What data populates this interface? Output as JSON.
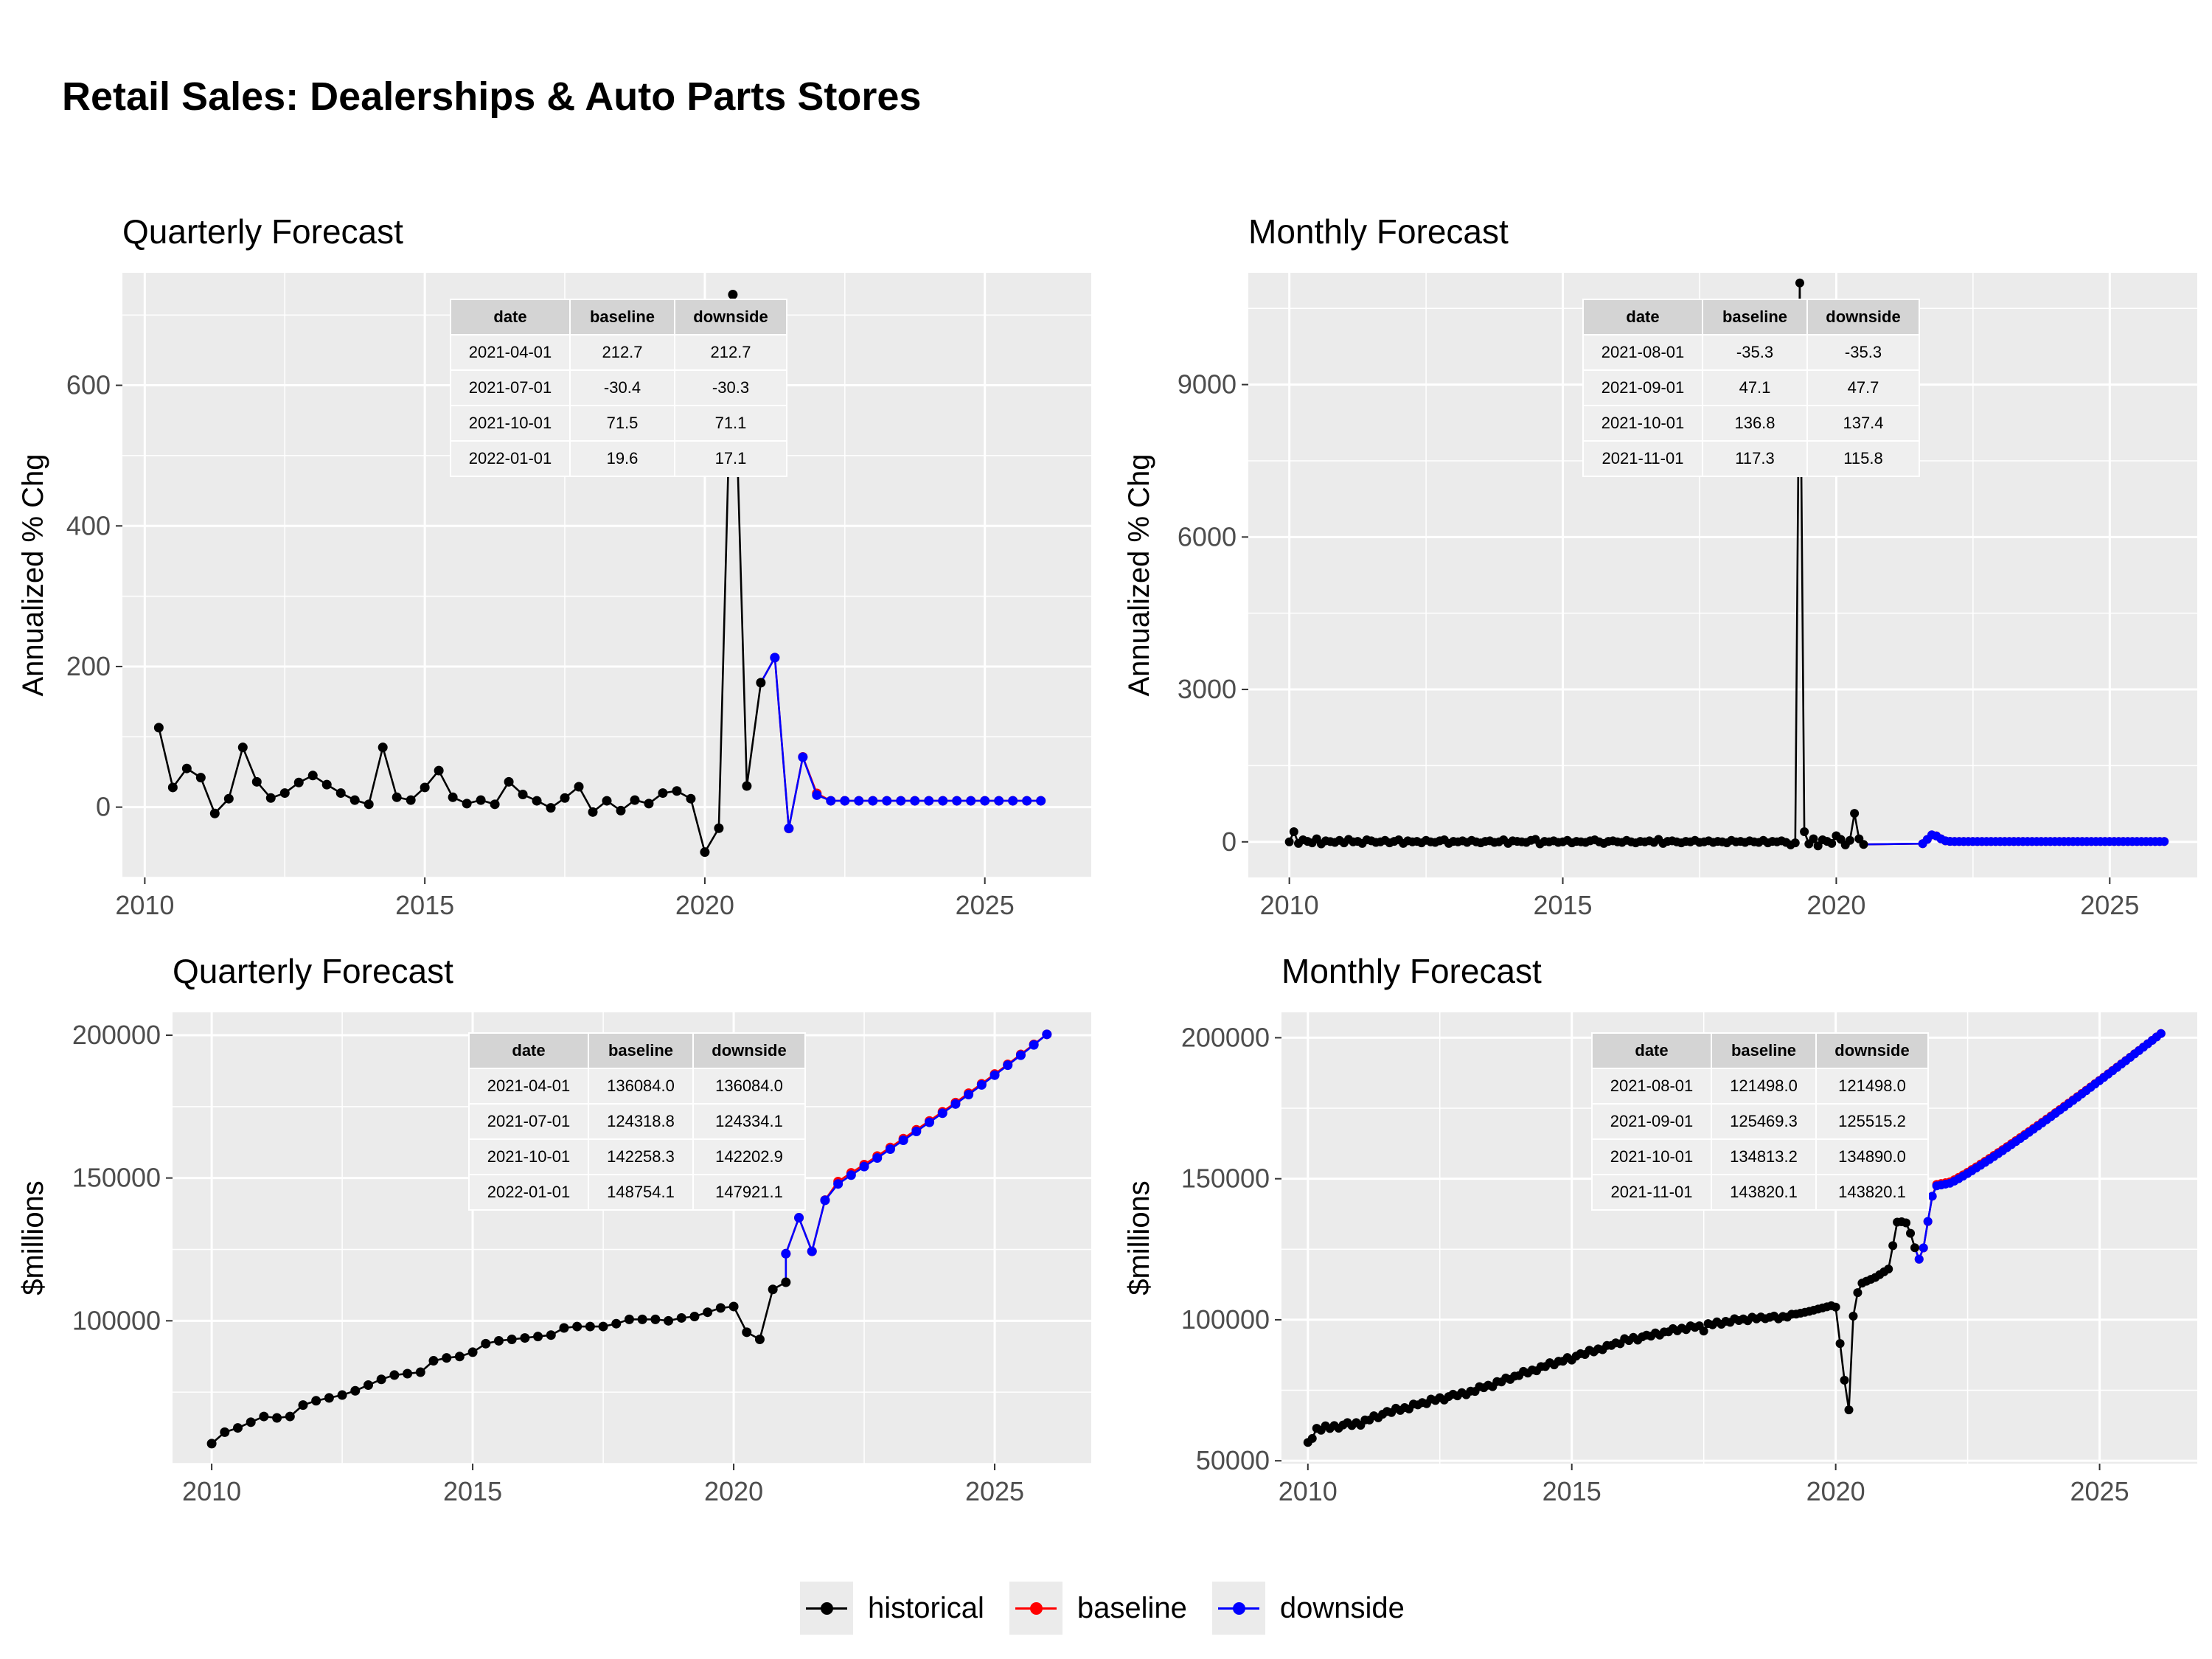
{
  "title": "Retail Sales: Dealerships & Auto Parts Stores",
  "colors": {
    "historical": "#000000",
    "baseline": "#ff0000",
    "downside": "#0000ff",
    "panel_bg": "#ebebeb",
    "grid": "#ffffff"
  },
  "legend": {
    "items": [
      {
        "key": "historical",
        "label": "historical"
      },
      {
        "key": "baseline",
        "label": "baseline"
      },
      {
        "key": "downside",
        "label": "downside"
      }
    ]
  },
  "chart_data": [
    {
      "id": "q_chg",
      "type": "line",
      "title": "Quarterly Forecast",
      "ylabel": "Annualized % Chg",
      "xlabel": "",
      "xlim": [
        2009.6,
        2026.9
      ],
      "ylim": [
        -100,
        760
      ],
      "xticks": [
        "2010",
        "2015",
        "2020",
        "2025"
      ],
      "yticks": [
        "0",
        "200",
        "400",
        "600"
      ],
      "historical": {
        "x": [
          2010.25,
          2010.5,
          2010.75,
          2011.0,
          2011.25,
          2011.5,
          2011.75,
          2012.0,
          2012.25,
          2012.5,
          2012.75,
          2013.0,
          2013.25,
          2013.5,
          2013.75,
          2014.0,
          2014.25,
          2014.5,
          2014.75,
          2015.0,
          2015.25,
          2015.5,
          2015.75,
          2016.0,
          2016.25,
          2016.5,
          2016.75,
          2017.0,
          2017.25,
          2017.5,
          2017.75,
          2018.0,
          2018.25,
          2018.5,
          2018.75,
          2019.0,
          2019.25,
          2019.5,
          2019.75,
          2020.0,
          2020.25,
          2020.5,
          2020.75,
          2021.0
        ],
        "y": [
          113,
          28,
          55,
          42,
          -9,
          12,
          85,
          36,
          13,
          20,
          35,
          45,
          32,
          20,
          10,
          4,
          85,
          14,
          10,
          28,
          52,
          14,
          5,
          10,
          4,
          36,
          18,
          9,
          -1,
          13,
          29,
          -7,
          9,
          -5,
          10,
          5,
          20,
          23,
          12,
          -64,
          -30,
          729,
          30,
          177
        ]
      },
      "baseline": {
        "x": [
          2021.25,
          2021.5,
          2021.75,
          2022.0,
          2022.25,
          2022.5,
          2022.75,
          2023.0,
          2023.25,
          2023.5,
          2023.75,
          2024.0,
          2024.25,
          2024.5,
          2024.75,
          2025.0,
          2025.25,
          2025.5,
          2025.75,
          2026.0
        ],
        "y": [
          212.7,
          -30.4,
          71.5,
          19.6,
          9,
          9,
          9,
          9,
          9,
          9,
          9,
          9,
          9,
          9,
          9,
          9,
          9,
          9,
          9,
          9
        ]
      },
      "downside": {
        "x": [
          2021.25,
          2021.5,
          2021.75,
          2022.0,
          2022.25,
          2022.5,
          2022.75,
          2023.0,
          2023.25,
          2023.5,
          2023.75,
          2024.0,
          2024.25,
          2024.5,
          2024.75,
          2025.0,
          2025.25,
          2025.5,
          2025.75,
          2026.0
        ],
        "y": [
          212.7,
          -30.3,
          71.1,
          17.1,
          9,
          9,
          9,
          9,
          9,
          9,
          9,
          9,
          9,
          9,
          9,
          9,
          9,
          9,
          9,
          9
        ]
      },
      "table": {
        "headers": [
          "date",
          "baseline",
          "downside"
        ],
        "rows": [
          [
            "2021-04-01",
            "212.7",
            "212.7"
          ],
          [
            "2021-07-01",
            "-30.4",
            "-30.3"
          ],
          [
            "2021-10-01",
            "71.5",
            "71.1"
          ],
          [
            "2022-01-01",
            "19.6",
            "17.1"
          ]
        ]
      }
    },
    {
      "id": "m_chg",
      "type": "line",
      "title": "Monthly Forecast",
      "ylabel": "Annualized % Chg",
      "xlabel": "",
      "xlim": [
        2009.25,
        2026.6
      ],
      "ylim": [
        -700,
        11200
      ],
      "xticks": [
        "2010",
        "2015",
        "2020",
        "2025"
      ],
      "yticks": [
        "0",
        "3000",
        "6000",
        "9000"
      ],
      "historical": {
        "x_start": 2010.0,
        "x_step": 0.08333,
        "y": [
          0,
          200,
          -30,
          40,
          10,
          -20,
          60,
          -40,
          20,
          5,
          -10,
          30,
          -20,
          50,
          0,
          10,
          -30,
          40,
          20,
          -10,
          0,
          30,
          -20,
          10,
          40,
          -30,
          20,
          0,
          10,
          -20,
          30,
          0,
          -10,
          20,
          40,
          -30,
          10,
          0,
          20,
          -10,
          30,
          0,
          -20,
          10,
          20,
          -10,
          0,
          40,
          -30,
          20,
          10,
          0,
          -10,
          30,
          50,
          -40,
          10,
          0,
          20,
          -10,
          0,
          30,
          -20,
          10,
          0,
          -10,
          20,
          40,
          0,
          -30,
          10,
          20,
          0,
          -10,
          30,
          0,
          -20,
          10,
          0,
          20,
          -10,
          50,
          -30,
          10,
          20,
          0,
          -20,
          10,
          0,
          30,
          -10,
          0,
          20,
          -10,
          10,
          0,
          -20,
          30,
          0,
          10,
          -10,
          20,
          0,
          -10,
          30,
          -20,
          10,
          0,
          20,
          -10,
          -60,
          -20,
          11000,
          200,
          -40,
          60,
          -80,
          40,
          10,
          -30,
          120,
          50,
          -60,
          30,
          560,
          60,
          -50
        ],
        "peak_note": "historical April-May 2020 spike near 11000"
      },
      "baseline": {
        "x_start": 2021.58,
        "x_step": 0.08333,
        "y": [
          -35.3,
          47.1,
          136.8,
          117.3,
          60,
          20,
          10,
          8,
          7,
          7,
          7,
          7,
          7,
          7,
          7,
          7,
          7,
          7,
          7,
          7,
          7,
          7,
          7,
          7,
          7,
          7,
          7,
          7,
          7,
          7,
          7,
          7,
          7,
          7,
          7,
          7,
          7,
          7,
          7,
          7,
          7,
          7,
          7,
          7,
          7,
          7,
          7,
          7,
          7,
          7,
          7,
          7,
          7,
          7
        ]
      },
      "downside": {
        "x_start": 2021.58,
        "x_step": 0.08333,
        "y": [
          -35.3,
          47.7,
          137.4,
          115.8,
          60,
          20,
          10,
          8,
          7,
          7,
          7,
          7,
          7,
          7,
          7,
          7,
          7,
          7,
          7,
          7,
          7,
          7,
          7,
          7,
          7,
          7,
          7,
          7,
          7,
          7,
          7,
          7,
          7,
          7,
          7,
          7,
          7,
          7,
          7,
          7,
          7,
          7,
          7,
          7,
          7,
          7,
          7,
          7,
          7,
          7,
          7,
          7,
          7,
          7
        ]
      },
      "table": {
        "headers": [
          "date",
          "baseline",
          "downside"
        ],
        "rows": [
          [
            "2021-08-01",
            "-35.3",
            "-35.3"
          ],
          [
            "2021-09-01",
            "47.1",
            "47.7"
          ],
          [
            "2021-10-01",
            "136.8",
            "137.4"
          ],
          [
            "2021-11-01",
            "117.3",
            "115.8"
          ]
        ]
      }
    },
    {
      "id": "q_lvl",
      "type": "line",
      "title": "Quarterly Forecast",
      "ylabel": "$millions",
      "xlabel": "",
      "xlim": [
        2009.25,
        2026.85
      ],
      "ylim": [
        50000,
        208000
      ],
      "xticks": [
        "2010",
        "2015",
        "2020",
        "2025"
      ],
      "yticks": [
        "100000",
        "150000",
        "200000"
      ],
      "historical": {
        "x": [
          2010.0,
          2010.25,
          2010.5,
          2010.75,
          2011.0,
          2011.25,
          2011.5,
          2011.75,
          2012.0,
          2012.25,
          2012.5,
          2012.75,
          2013.0,
          2013.25,
          2013.5,
          2013.75,
          2014.0,
          2014.25,
          2014.5,
          2014.75,
          2015.0,
          2015.25,
          2015.5,
          2015.75,
          2016.0,
          2016.25,
          2016.5,
          2016.75,
          2017.0,
          2017.25,
          2017.5,
          2017.75,
          2018.0,
          2018.25,
          2018.5,
          2018.75,
          2019.0,
          2019.25,
          2019.5,
          2019.75,
          2020.0,
          2020.25,
          2020.5,
          2020.75,
          2021.0
        ],
        "y": [
          57000,
          61000,
          62500,
          64500,
          66500,
          66000,
          66500,
          70500,
          72000,
          73000,
          74000,
          75500,
          77500,
          79500,
          81000,
          81500,
          82000,
          86000,
          87000,
          87500,
          89000,
          92000,
          93000,
          93500,
          94000,
          94500,
          95000,
          97500,
          98000,
          98000,
          98000,
          99000,
          100500,
          100500,
          100500,
          100000,
          101000,
          101500,
          103000,
          104500,
          105000,
          96000,
          93500,
          111000,
          113500
        ]
      },
      "baseline": {
        "x": [
          2021.0,
          2021.25,
          2021.5,
          2021.75,
          2022.0,
          2022.25,
          2022.5,
          2022.75,
          2023.0,
          2023.25,
          2023.5,
          2023.75,
          2024.0,
          2024.25,
          2024.5,
          2024.75,
          2025.0,
          2025.25,
          2025.5,
          2025.75,
          2026.0
        ],
        "y": [
          123500,
          136084,
          124318.8,
          142258.3,
          148754.1,
          151800,
          154700,
          157700,
          160700,
          163800,
          166900,
          170000,
          173200,
          176400,
          179700,
          183000,
          186400,
          189800,
          193300,
          196800,
          200300
        ]
      },
      "downside": {
        "x": [
          2021.0,
          2021.25,
          2021.5,
          2021.75,
          2022.0,
          2022.25,
          2022.5,
          2022.75,
          2023.0,
          2023.25,
          2023.5,
          2023.75,
          2024.0,
          2024.25,
          2024.5,
          2024.75,
          2025.0,
          2025.25,
          2025.5,
          2025.75,
          2026.0
        ],
        "y": [
          123500,
          136084,
          124334.1,
          142202.9,
          147921.1,
          151000,
          154000,
          157000,
          160100,
          163200,
          166300,
          169500,
          172700,
          175900,
          179200,
          182600,
          186000,
          189500,
          193000,
          196600,
          200300
        ]
      },
      "table": {
        "headers": [
          "date",
          "baseline",
          "downside"
        ],
        "rows": [
          [
            "2021-04-01",
            "136084.0",
            "136084.0"
          ],
          [
            "2021-07-01",
            "124318.8",
            "124334.1"
          ],
          [
            "2021-10-01",
            "142258.3",
            "142202.9"
          ],
          [
            "2022-01-01",
            "148754.1",
            "147921.1"
          ]
        ]
      }
    },
    {
      "id": "m_lvl",
      "type": "line",
      "title": "Monthly Forecast",
      "ylabel": "$millions",
      "xlabel": "",
      "xlim": [
        2009.5,
        2026.85
      ],
      "ylim": [
        49000,
        209000
      ],
      "xticks": [
        "2010",
        "2015",
        "2020",
        "2025"
      ],
      "yticks": [
        "50000",
        "100000",
        "150000",
        "200000"
      ],
      "historical": {
        "x_start": 2010.0,
        "x_step": 0.08333,
        "anchors_x": [
          2010.0,
          2010.17,
          2011.0,
          2011.5,
          2012.0,
          2012.5,
          2013.0,
          2013.5,
          2014.0,
          2014.5,
          2015.0,
          2015.5,
          2016.0,
          2016.5,
          2017.0,
          2017.5,
          2018.0,
          2018.5,
          2019.0,
          2019.5,
          2019.92,
          2020.0,
          2020.17,
          2020.25,
          2020.33,
          2020.42,
          2020.5,
          2020.75,
          2021.0,
          2021.17,
          2021.33,
          2021.42,
          2021.5
        ],
        "anchors_y": [
          56500,
          61000,
          63500,
          67000,
          69500,
          72000,
          74000,
          77000,
          80500,
          83500,
          86500,
          89500,
          92500,
          94500,
          96500,
          98000,
          99500,
          100500,
          101000,
          103000,
          105000,
          104500,
          78000,
          68000,
          101000,
          110000,
          113000,
          115000,
          118000,
          135000,
          134500,
          130500,
          125500
        ],
        "jitter": [
          0,
          -800,
          600,
          -400,
          900,
          -300,
          500,
          -700,
          200,
          800,
          -500,
          300,
          -900,
          400,
          -200,
          700,
          -600,
          100,
          500,
          -300,
          800,
          -400,
          200,
          -700,
          600,
          -100,
          300,
          -500,
          700,
          -200,
          400,
          -800,
          100,
          600,
          -300,
          500,
          -600,
          200,
          -400,
          800,
          -100,
          300,
          -700,
          500,
          -200,
          600,
          -500,
          100,
          -300,
          700,
          -400,
          200,
          -600,
          400,
          -100,
          800,
          -500,
          300,
          -200,
          600,
          -800,
          100,
          500,
          -300,
          700,
          -400,
          200,
          -600,
          400,
          -100,
          300,
          -500,
          800,
          -200,
          600,
          -700,
          100,
          400,
          -300,
          500,
          -600,
          200,
          -100,
          700,
          -400,
          300,
          -500,
          600,
          -200,
          100,
          -2000,
          400,
          -300,
          500,
          -600,
          200,
          -400,
          700,
          -100,
          300,
          -500,
          600,
          -200,
          400,
          -300,
          100,
          500,
          -600,
          200,
          -400,
          300,
          0,
          0,
          0,
          0,
          0,
          0,
          0,
          0,
          0,
          0,
          0,
          0,
          0,
          0,
          0,
          0,
          0,
          0
        ]
      },
      "baseline": {
        "x_start": 2021.58,
        "x_step": 0.08333,
        "first_values": [
          121498.0,
          125469.3,
          134813.2,
          143820.1
        ],
        "end_value": 201500,
        "plateau_value": 148000
      },
      "downside": {
        "x_start": 2021.58,
        "x_step": 0.08333,
        "first_values": [
          121498.0,
          125515.2,
          134890.0,
          143820.1
        ],
        "end_value": 201500,
        "plateau_value": 147500
      },
      "table": {
        "headers": [
          "date",
          "baseline",
          "downside"
        ],
        "rows": [
          [
            "2021-08-01",
            "121498.0",
            "121498.0"
          ],
          [
            "2021-09-01",
            "125469.3",
            "125515.2"
          ],
          [
            "2021-10-01",
            "134813.2",
            "134890.0"
          ],
          [
            "2021-11-01",
            "143820.1",
            "143820.1"
          ]
        ]
      }
    }
  ]
}
